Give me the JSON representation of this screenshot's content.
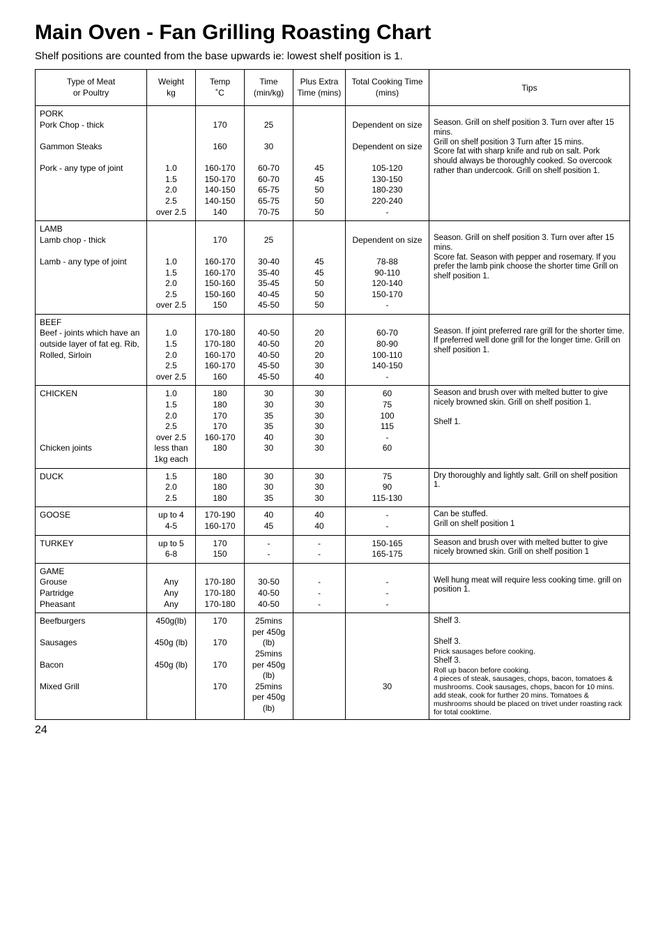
{
  "title": "Main Oven - Fan Grilling Roasting Chart",
  "subtitle": "Shelf positions are counted from the base upwards ie: lowest shelf position is 1.",
  "headers": {
    "meat": "Type of Meat\nor Poultry",
    "weight": "Weight\nkg",
    "temp": "Temp\n˚C",
    "time": "Time\n(min/kg)",
    "plus": "Plus Extra\nTime (mins)",
    "total": "Total Cooking Time\n(mins)",
    "tips": "Tips"
  },
  "rows": [
    {
      "meat": "PORK\nPork Chop - thick\n\nGammon Steaks\n\nPork - any type of joint",
      "weight": "\n\n\n\n\n1.0\n1.5\n2.0\n2.5\nover 2.5",
      "temp": "\n170\n\n160\n\n160-170\n150-170\n140-150\n140-150\n140",
      "time": "\n25\n\n30\n\n60-70\n60-70\n65-75\n65-75\n70-75",
      "plus": "\n\n\n\n\n45\n45\n50\n50\n50",
      "total": "\nDependent on size\n\nDependent on size\n\n105-120\n130-150\n180-230\n220-240\n-",
      "tips": "\nSeason. Grill on shelf position 3. Turn over after 15 mins.\nGrill on shelf position 3 Turn after 15 mins.\nScore fat with sharp knife and rub on salt. Pork should always be thoroughly cooked. So overcook rather than undercook. Grill on shelf position 1."
    },
    {
      "meat": "LAMB\nLamb chop - thick\n\nLamb - any type of joint",
      "weight": "\n\n\n1.0\n1.5\n2.0\n2.5\nover 2.5",
      "temp": "\n170\n\n160-170\n160-170\n150-160\n150-160\n150",
      "time": "\n25\n\n30-40\n35-40\n35-45\n40-45\n45-50",
      "plus": "\n\n\n45\n45\n50\n50\n50",
      "total": "\nDependent on size\n\n78-88\n90-110\n120-140\n150-170\n-",
      "tips": "\nSeason. Grill on shelf position 3. Turn over after 15 mins.\nScore fat. Season with pepper and rosemary. If you prefer the lamb pink choose the shorter time Grill on shelf position 1."
    },
    {
      "meat": "BEEF\nBeef - joints which have an outside layer of fat eg. Rib, Rolled, Sirloin",
      "weight": "\n1.0\n1.5\n2.0\n2.5\nover 2.5",
      "temp": "\n170-180\n170-180\n160-170\n160-170\n160",
      "time": "\n40-50\n40-50\n40-50\n45-50\n45-50",
      "plus": "\n20\n20\n20\n30\n40",
      "total": "\n60-70\n80-90\n100-110\n140-150\n-",
      "tips": "\nSeason. If joint preferred rare grill for the shorter time. If preferred well done grill for the longer time. Grill on shelf position 1."
    },
    {
      "meat": "CHICKEN\n\n\n\n\nChicken joints",
      "weight": "1.0\n1.5\n2.0\n2.5\nover 2.5\nless than 1kg each",
      "temp": "180\n180\n170\n170\n160-170\n180",
      "time": "30\n30\n35\n35\n40\n30",
      "plus": "30\n30\n30\n30\n30\n30",
      "total": "60\n75\n100\n115\n-\n60",
      "tips": "Season and brush over with melted butter to give nicely browned skin. Grill on shelf position 1.\n\nShelf 1."
    },
    {
      "meat": "DUCK",
      "weight": "1.5\n2.0\n2.5",
      "temp": "180\n180\n180",
      "time": "30\n30\n35",
      "plus": "30\n30\n30",
      "total": "75\n90\n115-130",
      "tips": "Dry thoroughly and lightly salt. Grill on shelf position 1."
    },
    {
      "meat": "GOOSE",
      "weight": "up to 4\n4-5",
      "temp": "170-190\n160-170",
      "time": "40\n45",
      "plus": "40\n40",
      "total": "-\n-",
      "tips": "Can be stuffed.\nGrill on shelf position 1"
    },
    {
      "meat": "TURKEY",
      "weight": "up to 5\n6-8",
      "temp": "170\n150",
      "time": "-\n-",
      "plus": "-\n-",
      "total": "150-165\n165-175",
      "tips": "Season and brush over with melted butter to give nicely browned skin. Grill on shelf position 1"
    },
    {
      "meat": "GAME\nGrouse\nPartridge\nPheasant",
      "weight": "\nAny\nAny\nAny",
      "temp": "\n170-180\n170-180\n170-180",
      "time": "\n30-50\n40-50\n40-50",
      "plus": "\n-\n-\n-",
      "total": "\n-\n-\n-",
      "tips": "\nWell hung meat will require less cooking time. grill on position 1."
    }
  ],
  "lastRow": {
    "meat": "Beefburgers\n\nSausages\n\nBacon\n\nMixed Grill",
    "weight": "450g(lb)\n\n450g (lb)\n\n450g (lb)",
    "temp": "170\n\n170\n\n170\n\n170",
    "time": "25mins per 450g (lb)\n25mins per 450g (lb)\n25mins per 450g (lb)",
    "plus": "",
    "total": "\n\n\n\n\n\n30",
    "tips_main": "Shelf 3.\n\nShelf 3.",
    "tips_small": "Prick sausages before cooking.",
    "tips_shelf": "Shelf 3.",
    "tips_rest": "Roll up bacon before cooking.\n4 pieces of steak, sausages, chops, bacon, tomatoes & mushrooms. Cook sausages, chops, bacon for 10 mins. add steak, cook for further 20 mins. Tomatoes & mushrooms should be placed on trivet under roasting rack for total cooktime."
  },
  "pageNumber": "24"
}
